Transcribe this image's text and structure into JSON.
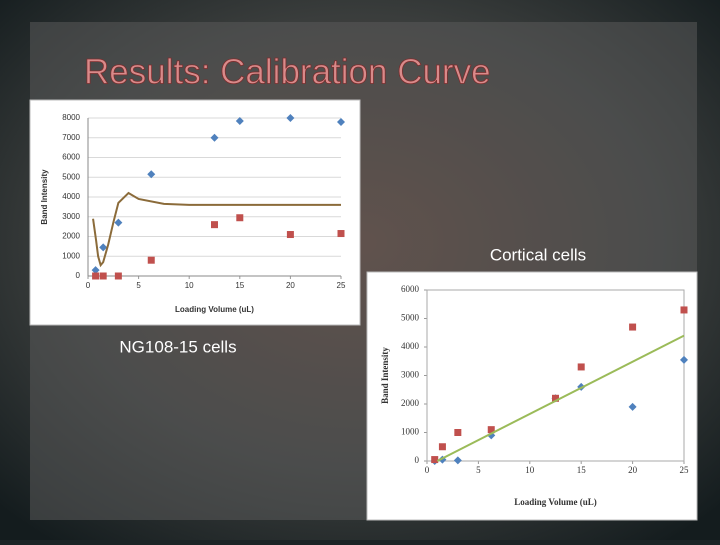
{
  "title": "Results: Calibration Curve",
  "captions": [
    "Cortical cells",
    "NG108-15 cells"
  ],
  "chart_data": [
    {
      "type": "scatter",
      "ylabel": "Band Intensity",
      "xlabel": "Loading Volume (uL)",
      "xlim": [
        0,
        25
      ],
      "xticks": [
        0,
        5,
        10,
        15,
        20,
        25
      ],
      "ylim": [
        0,
        8000
      ],
      "yticks": [
        0,
        1000,
        2000,
        3000,
        4000,
        5000,
        6000,
        7000,
        8000
      ],
      "grid": true,
      "series": [
        {
          "color": "#4f81bd",
          "marker": "diamond",
          "x": [
            0.75,
            1.5,
            3,
            6.25,
            12.5,
            15,
            20,
            25
          ],
          "values": [
            300,
            1450,
            2700,
            5150,
            7000,
            7850,
            8000,
            7800
          ]
        },
        {
          "color": "#c0504d",
          "marker": "square",
          "x": [
            0.75,
            1.5,
            3,
            6.25,
            12.5,
            15,
            20,
            25
          ],
          "values": [
            0,
            0,
            0,
            800,
            2600,
            2950,
            2100,
            2150
          ]
        },
        {
          "color": "#8b6b3a",
          "marker": "line",
          "x": [
            0.5,
            0.8,
            1,
            1.25,
            1.5,
            2,
            2.5,
            3,
            4,
            5,
            7.5,
            10,
            15,
            20,
            25
          ],
          "values": [
            2900,
            1800,
            1000,
            550,
            700,
            1600,
            2700,
            3700,
            4200,
            3900,
            3650,
            3600,
            3600,
            3600,
            3600
          ]
        }
      ]
    },
    {
      "type": "scatter",
      "ylabel": "Band Intensity",
      "xlabel": "Loading Volume (uL)",
      "xlim": [
        0,
        25
      ],
      "xticks": [
        0,
        5,
        10,
        15,
        20,
        25
      ],
      "ylim": [
        0,
        6000
      ],
      "yticks": [
        0,
        1000,
        2000,
        3000,
        4000,
        5000,
        6000
      ],
      "grid": false,
      "series": [
        {
          "color": "#4f81bd",
          "marker": "diamond",
          "x": [
            0.75,
            1.5,
            3,
            6.25,
            12.5,
            15,
            20,
            25
          ],
          "values": [
            0,
            50,
            20,
            900,
            2200,
            2600,
            1900,
            3550
          ]
        },
        {
          "color": "#c0504d",
          "marker": "square",
          "x": [
            0.75,
            1.5,
            3,
            6.25,
            12.5,
            15,
            20,
            25
          ],
          "values": [
            50,
            500,
            1000,
            1100,
            2200,
            3300,
            4700,
            5300
          ]
        },
        {
          "color": "#9bbb59",
          "marker": "line",
          "x": [
            1,
            25
          ],
          "values": [
            0,
            4400
          ]
        }
      ]
    }
  ]
}
